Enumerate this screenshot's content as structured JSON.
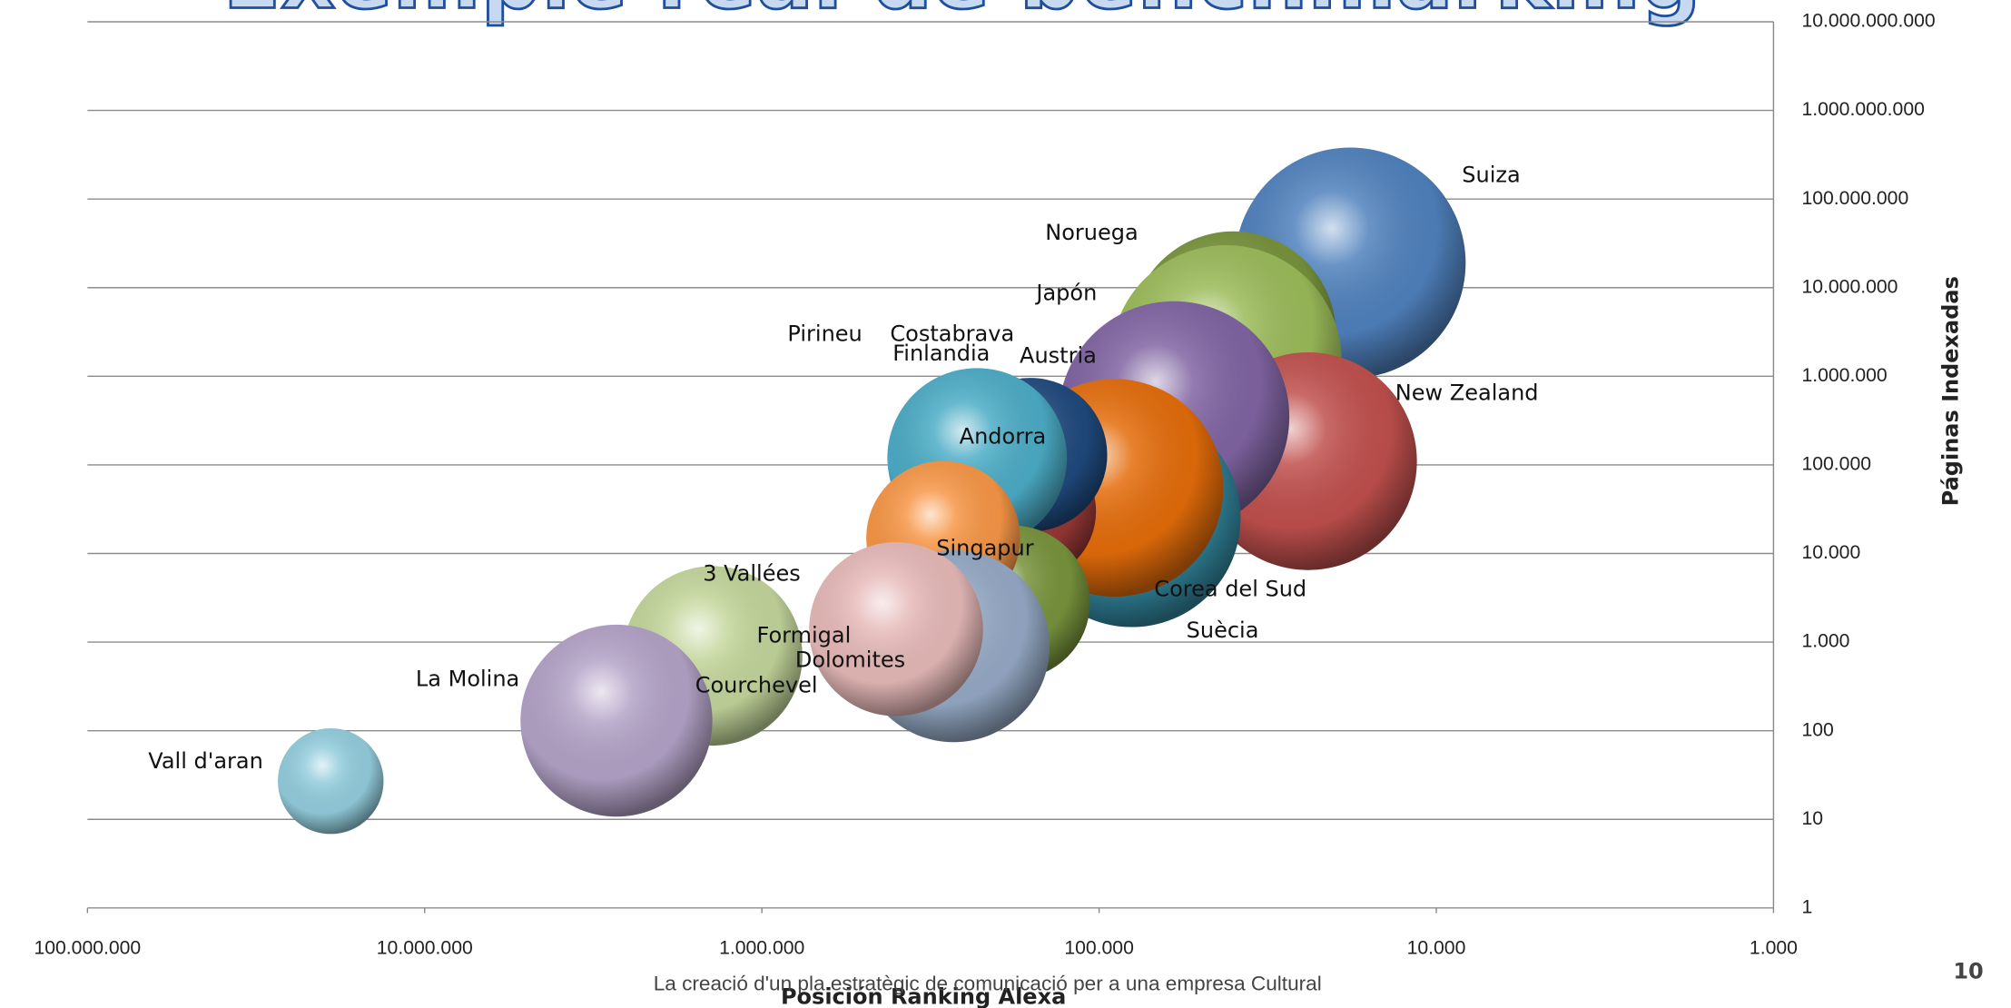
{
  "chart_data": {
    "type": "bubble",
    "title": "Exemple real de benchmarking",
    "xlabel": "Posición Ranking Alexa",
    "ylabel": "Páginas Indexadas",
    "footer": "La creació d'un pla estratègic de comunicació per a una empresa Cultural",
    "page_number": "10",
    "xscale": "log",
    "yscale": "log",
    "grid": true,
    "xlim": [
      100000000,
      1000
    ],
    "xticks": [
      {
        "value": 100000000,
        "label": "100.000.000"
      },
      {
        "value": 10000000,
        "label": "10.000.000"
      },
      {
        "value": 1000000,
        "label": "1.000.000"
      },
      {
        "value": 100000,
        "label": "100.000"
      },
      {
        "value": 10000,
        "label": "10.000"
      },
      {
        "value": 1000,
        "label": "1.000"
      }
    ],
    "ylim": [
      1,
      10000000000
    ],
    "yticks": [
      1,
      10,
      100,
      {
        "value": 1000,
        "label": "1.000"
      },
      {
        "value": 10000,
        "label": "10.000"
      },
      {
        "value": 100000,
        "label": "100.000"
      },
      {
        "value": 1000000,
        "label": "1.000.000"
      },
      {
        "value": 10000000,
        "label": "10.000.000"
      },
      {
        "value": 100000000,
        "label": "100.000.000"
      },
      {
        "value": 1000000000,
        "label": "1.000.000.000"
      },
      {
        "value": 10000000000,
        "label": "10.000.000.000"
      }
    ],
    "series": [
      {
        "name": "Suiza",
        "color": "#4f81bd",
        "x": [
          18000
        ],
        "values": [
          19000000
        ],
        "sizes": [
          8100
        ]
      },
      {
        "name": "Noruega",
        "color": "#77933c",
        "x": [
          40000
        ],
        "values": [
          3000000
        ],
        "sizes": [
          6400
        ]
      },
      {
        "name": "Japón",
        "color": "#9bbb59",
        "x": [
          42000
        ],
        "values": [
          1500000
        ],
        "sizes": [
          8100
        ]
      },
      {
        "name": "New Zealand",
        "color": "#c0504d",
        "x": [
          24000
        ],
        "values": [
          110000
        ],
        "sizes": [
          7200
        ]
      },
      {
        "name": "Austria",
        "color": "#8064a2",
        "x": [
          60000
        ],
        "values": [
          350000
        ],
        "sizes": [
          8100
        ]
      },
      {
        "name": "Suècia",
        "color": "#31859c",
        "x": [
          80000
        ],
        "values": [
          25000
        ],
        "sizes": [
          7200
        ]
      },
      {
        "name": "Corea del Sud",
        "color": "#e46c0a",
        "x": [
          90000
        ],
        "values": [
          55000
        ],
        "sizes": [
          7200
        ]
      },
      {
        "name": "Costabrava",
        "color": "#953735",
        "x": [
          165000
        ],
        "values": [
          30000
        ],
        "sizes": [
          3000
        ]
      },
      {
        "name": "Pirineu",
        "color": "#1f497d",
        "x": [
          160000
        ],
        "values": [
          130000
        ],
        "sizes": [
          3600
        ]
      },
      {
        "name": "Andorra",
        "color": "#4bacc6",
        "x": [
          230000
        ],
        "values": [
          120000
        ],
        "sizes": [
          4900
        ]
      },
      {
        "name": "Finlandia",
        "color": "#77933c",
        "x": [
          180000
        ],
        "values": [
          2800
        ],
        "sizes": [
          3600
        ]
      },
      {
        "name": "Singapur",
        "color": "#f79646",
        "x": [
          290000
        ],
        "values": [
          15000
        ],
        "sizes": [
          3600
        ]
      },
      {
        "name": "Courchevel",
        "color": "#9bbb59",
        "x": [
          1500000
        ],
        "values": [
          500
        ],
        "sizes": [
          3000
        ]
      },
      {
        "name": "3 Vallées",
        "color": "#c3d69b",
        "x": [
          1400000
        ],
        "values": [
          700
        ],
        "sizes": [
          4900
        ]
      },
      {
        "name": "Dolomites",
        "color": "#95a9c5",
        "x": [
          270000
        ],
        "values": [
          900
        ],
        "sizes": [
          5600
        ]
      },
      {
        "name": "Formigal",
        "color": "#e6b9b8",
        "x": [
          400000
        ],
        "values": [
          1400
        ],
        "sizes": [
          4600
        ]
      },
      {
        "name": "La Molina",
        "color": "#b3a2c7",
        "x": [
          2700000
        ],
        "values": [
          130
        ],
        "sizes": [
          5600
        ]
      },
      {
        "name": "Vall d'aran",
        "color": "#93cddd",
        "x": [
          19000000
        ],
        "values": [
          27
        ],
        "sizes": [
          1700
        ]
      }
    ]
  }
}
